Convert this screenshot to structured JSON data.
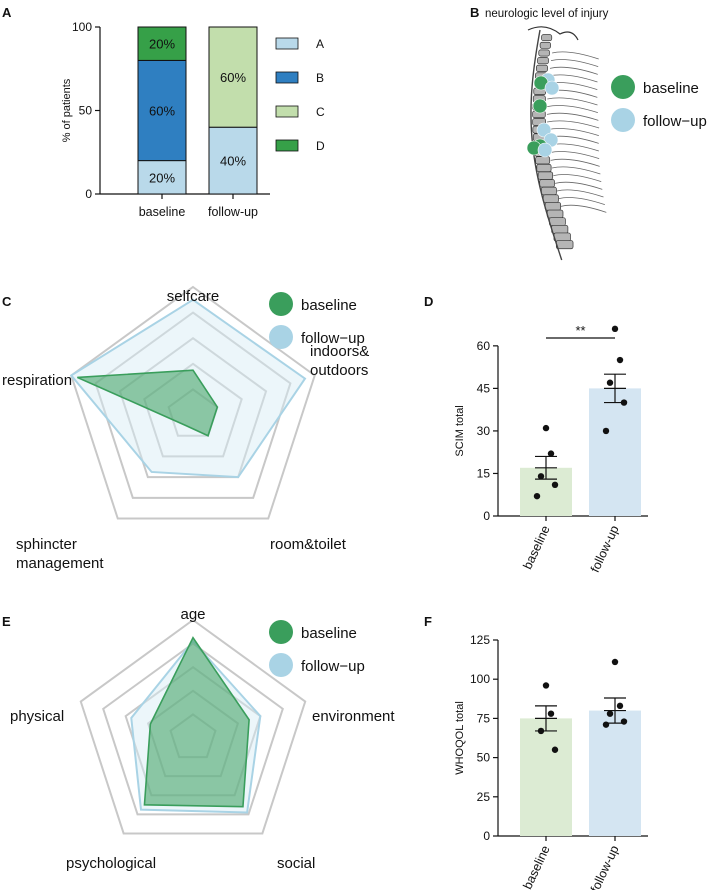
{
  "panels": {
    "A": {
      "label": "A",
      "chart_data": {
        "type": "bar",
        "stacked": true,
        "categories": [
          "baseline",
          "follow-up"
        ],
        "ylabel": "% of patients",
        "ylim": [
          0,
          100
        ],
        "yticks": [
          "0",
          "50",
          "100"
        ],
        "series": [
          {
            "name": "A",
            "color": "#b9d9ea",
            "values": [
              20,
              40
            ],
            "labels": [
              "20%",
              "40%"
            ]
          },
          {
            "name": "B",
            "color": "#2f7fc1",
            "values": [
              60,
              0
            ],
            "labels": [
              "60%",
              ""
            ]
          },
          {
            "name": "C",
            "color": "#c2deac",
            "values": [
              0,
              60
            ],
            "labels": [
              "",
              "60%"
            ]
          },
          {
            "name": "D",
            "color": "#36a048",
            "values": [
              20,
              0
            ],
            "labels": [
              "20%",
              ""
            ]
          }
        ]
      }
    },
    "B": {
      "label": "B",
      "title": "neurologic level of injury",
      "legend": [
        {
          "name": "baseline",
          "color": "#3a9e5c"
        },
        {
          "name": "follow−up",
          "color": "#a9d3e5"
        }
      ]
    },
    "C": {
      "label": "C",
      "chart_data": {
        "type": "radar",
        "axes": [
          "selfcare",
          "indoors&\noutdoors",
          "room&toilet",
          "sphincter\nmanagement",
          "respiration"
        ],
        "rmax": 1,
        "grid_levels": 4,
        "series": [
          {
            "name": "baseline",
            "color": "#3a9e5c",
            "fill": "#3a9e5c",
            "values": [
              0.35,
              0.2,
              0.2,
              0.1,
              0.95
            ]
          },
          {
            "name": "follow−up",
            "color": "#a9d3e5",
            "fill": "#d5eaf3",
            "values": [
              0.9,
              0.92,
              0.6,
              0.55,
              1.0
            ]
          }
        ]
      }
    },
    "D": {
      "label": "D",
      "chart_data": {
        "type": "bar",
        "categories": [
          "baseline",
          "follow-up"
        ],
        "ylabel": "SCIM total",
        "ylim": [
          0,
          67
        ],
        "yticks": [
          0,
          15,
          30,
          45,
          60
        ],
        "values": [
          17,
          45
        ],
        "sem": [
          4,
          5
        ],
        "points": [
          [
            31,
            22,
            14,
            11,
            7
          ],
          [
            66,
            55,
            47,
            40,
            30
          ]
        ],
        "colors": [
          "#dcebd3",
          "#d4e5f2"
        ],
        "significance": "**"
      }
    },
    "E": {
      "label": "E",
      "chart_data": {
        "type": "radar",
        "axes": [
          "age",
          "environment",
          "social",
          "psychological",
          "physical"
        ],
        "rmax": 1,
        "grid_levels": 4,
        "series": [
          {
            "name": "baseline",
            "color": "#3a9e5c",
            "fill": "#3a9e5c",
            "values": [
              0.85,
              0.5,
              0.72,
              0.7,
              0.38
            ]
          },
          {
            "name": "follow−up",
            "color": "#a9d3e5",
            "fill": "#d5eaf3",
            "values": [
              0.82,
              0.6,
              0.78,
              0.75,
              0.55
            ]
          }
        ]
      }
    },
    "F": {
      "label": "F",
      "chart_data": {
        "type": "bar",
        "categories": [
          "baseline",
          "follow-up"
        ],
        "ylabel": "WHOQOL total",
        "ylim": [
          0,
          125
        ],
        "yticks": [
          0,
          25,
          50,
          75,
          100,
          125
        ],
        "values": [
          75,
          80
        ],
        "sem": [
          8,
          8
        ],
        "points": [
          [
            96,
            78,
            67,
            55
          ],
          [
            111,
            83,
            78,
            73,
            71
          ]
        ],
        "colors": [
          "#dcebd3",
          "#d4e5f2"
        ]
      }
    }
  }
}
